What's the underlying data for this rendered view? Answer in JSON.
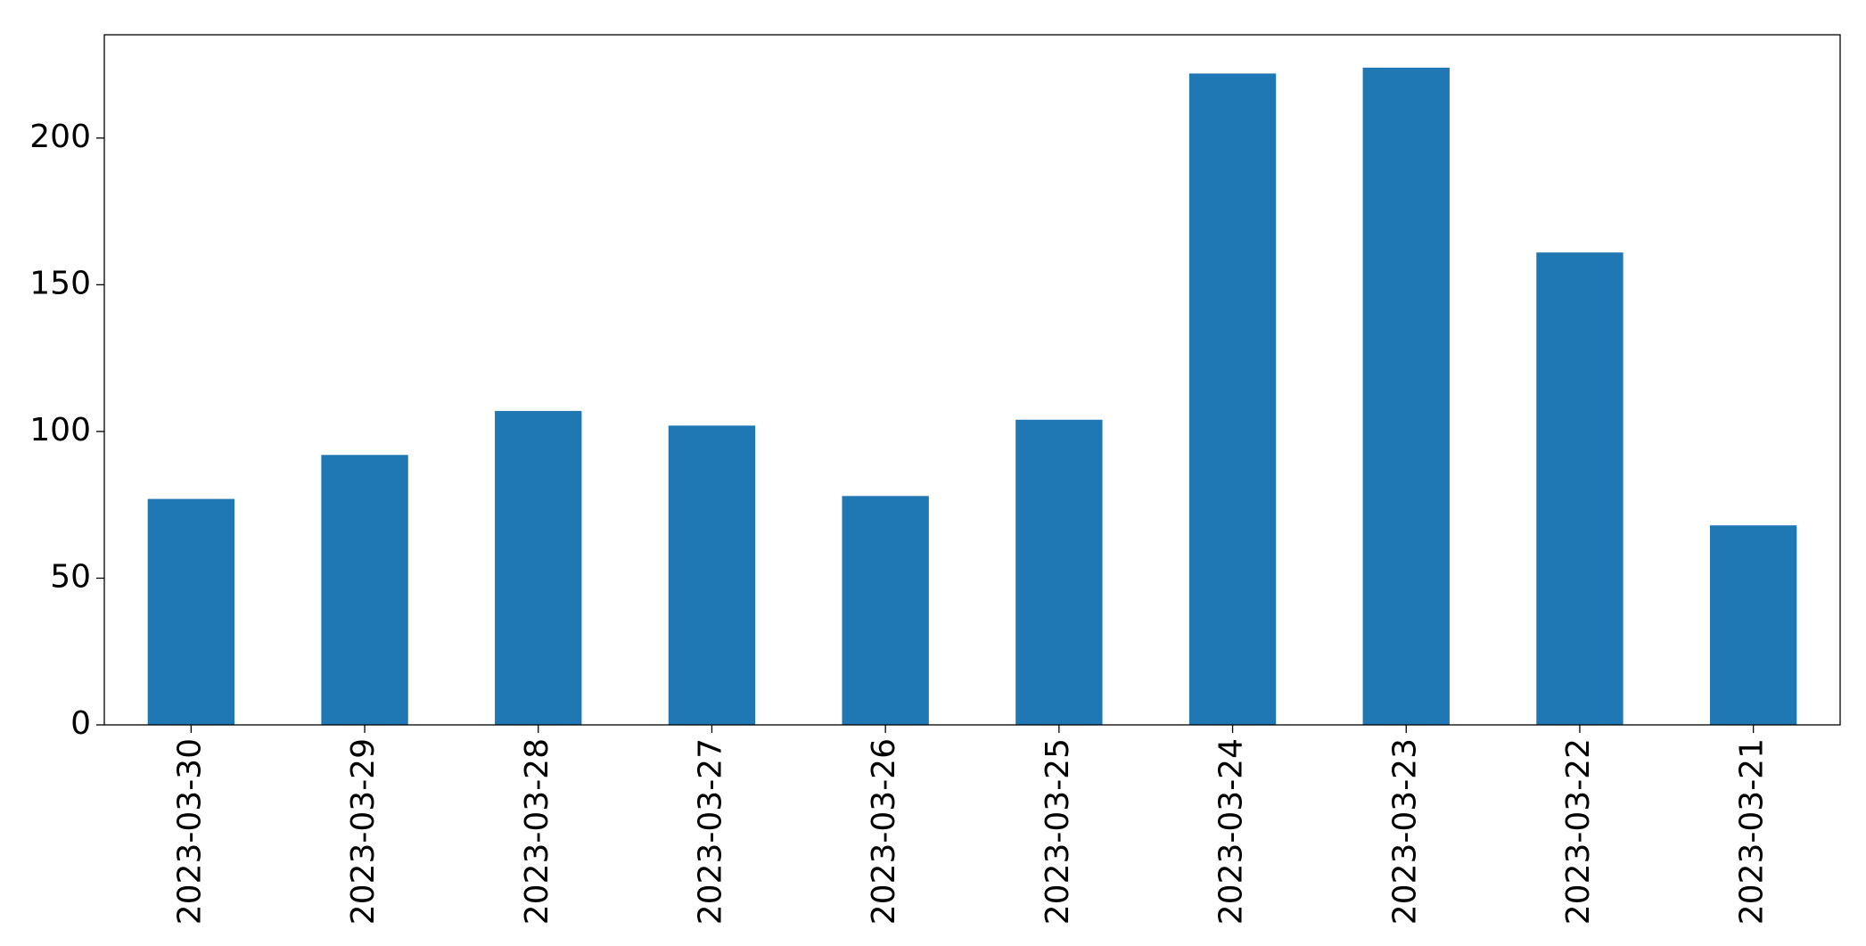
{
  "chart_data": {
    "type": "bar",
    "categories": [
      "2023-03-30",
      "2023-03-29",
      "2023-03-28",
      "2023-03-27",
      "2023-03-26",
      "2023-03-25",
      "2023-03-24",
      "2023-03-23",
      "2023-03-22",
      "2023-03-21"
    ],
    "values": [
      77,
      92,
      107,
      102,
      78,
      104,
      222,
      224,
      161,
      68
    ],
    "color": "#1f77b4",
    "ylim": [
      0,
      235.2
    ],
    "yticks": [
      0,
      50,
      100,
      150,
      200
    ],
    "grid": false
  }
}
